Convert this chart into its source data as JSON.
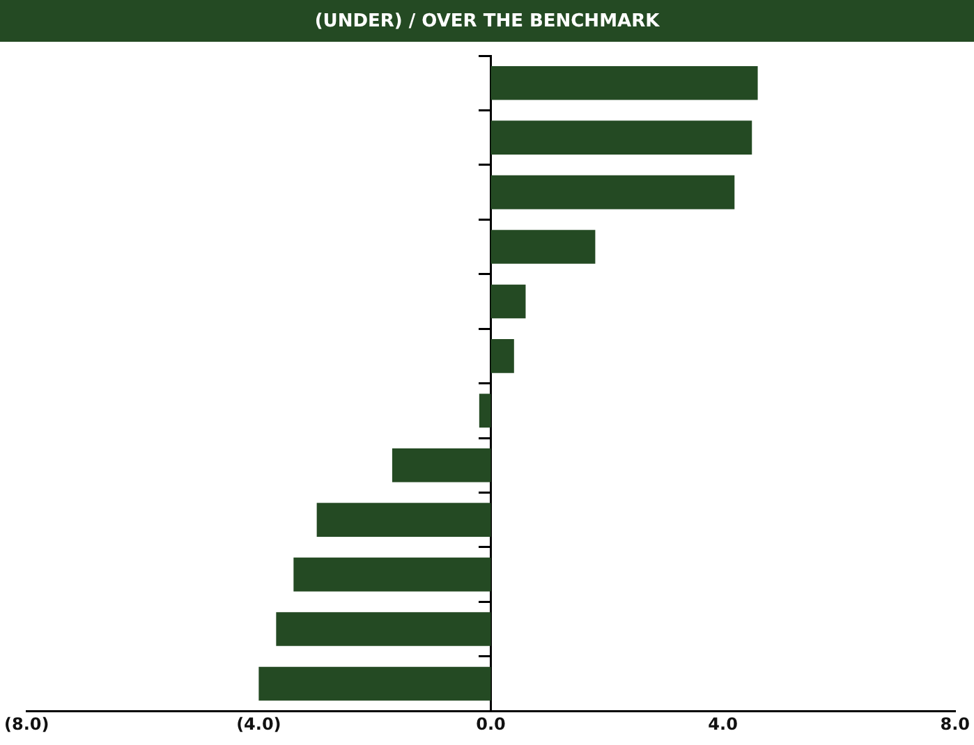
{
  "chart_data": {
    "type": "bar",
    "orientation": "horizontal",
    "title": "(UNDER) / OVER THE BENCHMARK",
    "categories": [
      null,
      null,
      null,
      null,
      null,
      null,
      null,
      null,
      null,
      null,
      null,
      null
    ],
    "values": [
      4.6,
      4.5,
      4.2,
      1.8,
      0.6,
      0.4,
      -0.2,
      -1.7,
      -3.0,
      -3.4,
      -3.7,
      -4.0
    ],
    "color": "#244a23",
    "xlim": [
      -8,
      8
    ],
    "xticks": [
      {
        "value": -8,
        "label": "(8.0)"
      },
      {
        "value": -4,
        "label": "(4.0)"
      },
      {
        "value": 0,
        "label": "0.0"
      },
      {
        "value": 4,
        "label": "4.0"
      },
      {
        "value": 8,
        "label": "8.0"
      }
    ],
    "legend": false
  }
}
